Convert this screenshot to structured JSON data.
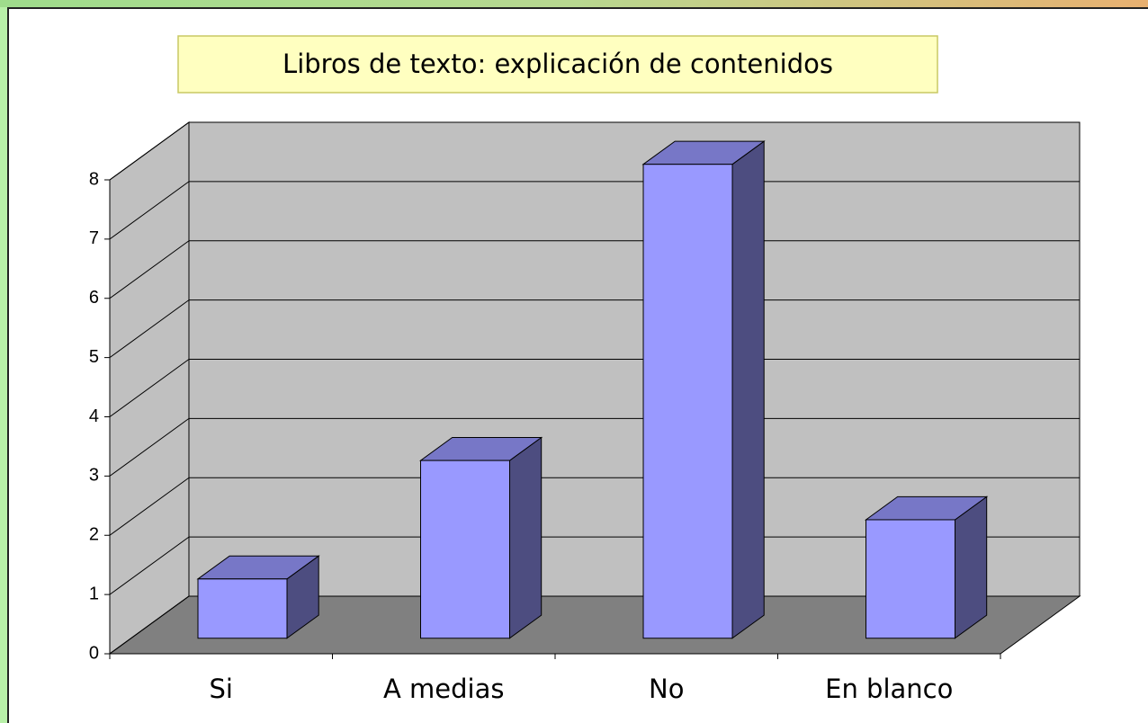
{
  "chart_data": {
    "type": "bar3d",
    "title": "Libros de texto: explicación de contenidos",
    "categories": [
      "Si",
      "A medias",
      "No",
      "En blanco"
    ],
    "values": [
      1,
      3,
      8,
      2
    ],
    "color": "#9999ff",
    "ylim": [
      0,
      8
    ],
    "yticks": [
      0,
      1,
      2,
      3,
      4,
      5,
      6,
      7,
      8
    ],
    "grid": true
  }
}
